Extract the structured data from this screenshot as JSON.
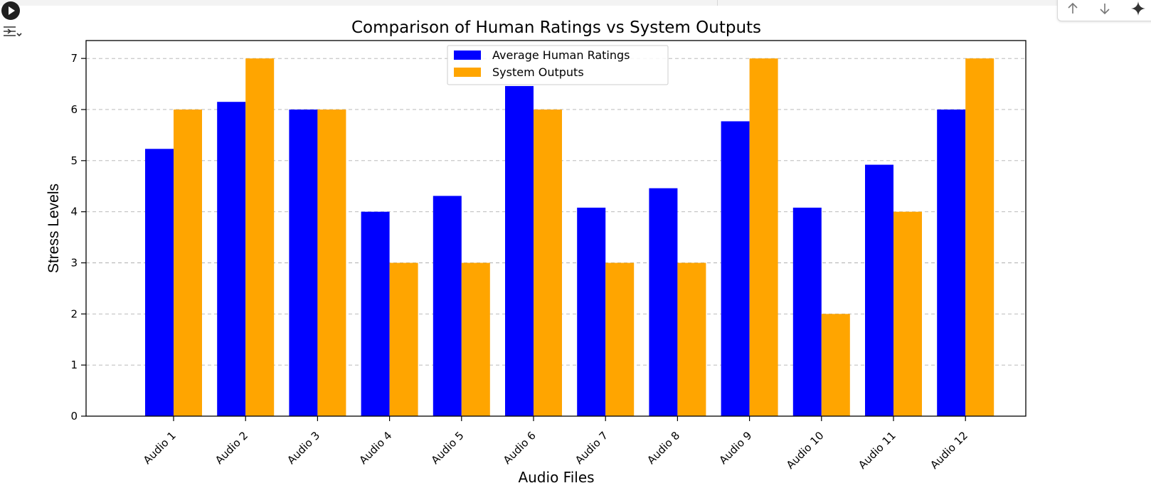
{
  "toolbar": {
    "run_icon": "play-icon",
    "output_icon": "output-settings-icon",
    "cell_actions": [
      "arrow-up-icon",
      "arrow-down-icon",
      "sparkle-icon"
    ]
  },
  "chart_data": {
    "type": "bar",
    "title": "Comparison of Human Ratings vs System Outputs",
    "xlabel": "Audio Files",
    "ylabel": "Stress Levels",
    "categories": [
      "Audio 1",
      "Audio 2",
      "Audio 3",
      "Audio 4",
      "Audio 5",
      "Audio 6",
      "Audio 7",
      "Audio 8",
      "Audio 9",
      "Audio 10",
      "Audio 11",
      "Audio 12"
    ],
    "series": [
      {
        "name": "Average Human Ratings",
        "color": "#0000ff",
        "values": [
          5.23,
          6.15,
          6.0,
          4.0,
          4.31,
          6.46,
          4.08,
          4.46,
          5.77,
          4.08,
          4.92,
          6.0
        ]
      },
      {
        "name": "System Outputs",
        "color": "#ffa500",
        "values": [
          6,
          7,
          6,
          3,
          3,
          6,
          3,
          3,
          7,
          2,
          4,
          7
        ]
      }
    ],
    "ylim": [
      0,
      7.35
    ],
    "yticks": [
      "0",
      "1",
      "2",
      "3",
      "4",
      "5",
      "6",
      "7"
    ],
    "grid": "horizontal, dashed",
    "legend_position": "top-center"
  }
}
